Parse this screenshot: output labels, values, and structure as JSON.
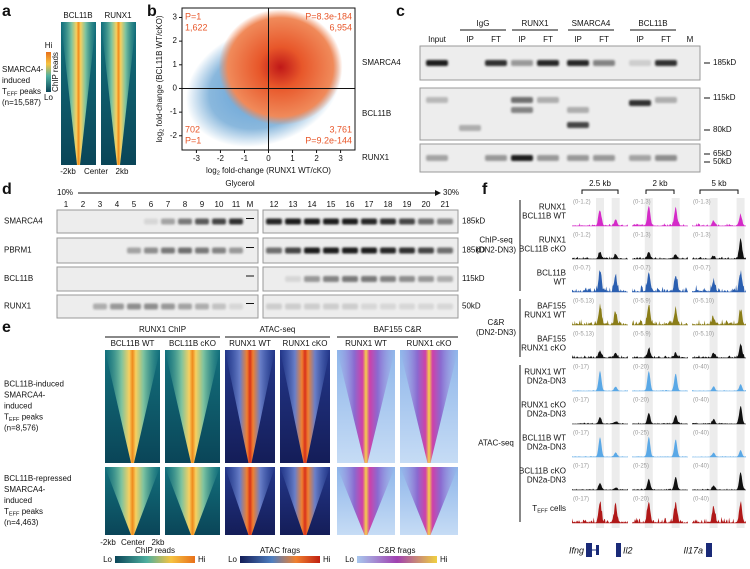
{
  "panel_a": {
    "label": "a",
    "columns": [
      "BCL11B",
      "RUNX1"
    ],
    "row_label": [
      "SMARCA4-",
      "induced",
      {
        "text": "T",
        "sub": "EFF",
        "after": " peaks"
      },
      "(n=15,587)"
    ],
    "colorbar": {
      "hi": "Hi",
      "title": "ChIP reads",
      "lo": "Lo"
    },
    "x_axis": [
      "-2kb",
      "Center",
      "2kb"
    ]
  },
  "panel_b": {
    "label": "b",
    "y_label": {
      "text": "log",
      "sub": "2",
      "after": " fold-change (BCL11B WT/cKO)"
    },
    "x_label": {
      "text": "log",
      "sub": "2",
      "after": " fold-change (RUNX1 WT/cKO)"
    },
    "xlim": [
      -3.6,
      3.6
    ],
    "ylim": [
      -2.6,
      3.4
    ],
    "xticks": [
      -3,
      -2,
      -1,
      0,
      1,
      2,
      3
    ],
    "yticks": [
      -2,
      -1,
      0,
      1,
      2,
      3
    ],
    "quadrants": {
      "top_left": [
        "P=1",
        "1,622"
      ],
      "top_right": [
        "P=8.3e-184",
        "6,954"
      ],
      "bottom_left": [
        "702",
        "P=1"
      ],
      "bottom_right": [
        "3,761",
        "P=9.2e-144"
      ]
    }
  },
  "panel_c": {
    "label": "c",
    "input": "Input",
    "marker": "M",
    "groups": [
      {
        "name": "IgG",
        "lanes": [
          "IP",
          "FT"
        ]
      },
      {
        "name": "RUNX1",
        "lanes": [
          "IP",
          "FT"
        ]
      },
      {
        "name": "SMARCA4",
        "lanes": [
          "IP",
          "FT"
        ]
      },
      {
        "name": "BCL11B",
        "lanes": [
          "IP",
          "FT"
        ]
      }
    ],
    "rows": [
      {
        "name": "SMARCA4",
        "markers": [
          "185kD"
        ]
      },
      {
        "name": "BCL11B",
        "markers": [
          "115kD",
          "80kD"
        ]
      },
      {
        "name": "RUNX1",
        "markers": [
          "65kD",
          "50kD"
        ]
      }
    ]
  },
  "panel_d": {
    "label": "d",
    "gradient": {
      "title": "Glycerol",
      "start": "10%",
      "end": "30%"
    },
    "lanes": [
      1,
      2,
      3,
      4,
      5,
      6,
      7,
      8,
      9,
      10,
      11,
      12,
      13,
      14,
      15,
      16,
      17,
      18,
      19,
      20,
      21
    ],
    "marker": "M",
    "rows": [
      {
        "name": "SMARCA4",
        "marker": "185kD"
      },
      {
        "name": "PBRM1",
        "marker": "185kD"
      },
      {
        "name": "BCL11B",
        "marker": "115kD"
      },
      {
        "name": "RUNX1",
        "marker": "50kD"
      }
    ]
  },
  "panel_e": {
    "label": "e",
    "groups": [
      {
        "name": "RUNX1 ChIP",
        "columns": [
          "BCL11B WT",
          "BCL11B cKO"
        ]
      },
      {
        "name": "ATAC-seq",
        "columns": [
          "RUNX1 WT",
          "RUNX1 cKO"
        ]
      },
      {
        "name": "BAF155 C&R",
        "columns": [
          "RUNX1 WT",
          "RUNX1 cKO"
        ]
      }
    ],
    "rows": [
      [
        "BCL11B-induced",
        "SMARCA4-",
        "induced",
        {
          "text": "T",
          "sub": "EFF",
          "after": " peaks"
        },
        "(n=8,576)"
      ],
      [
        "BCL11B-repressed",
        "SMARCA4-",
        "induced",
        {
          "text": "T",
          "sub": "EFF",
          "after": " peaks"
        },
        "(n=4,463)"
      ]
    ],
    "x_axis": [
      "-2kb",
      "Center",
      "2kb"
    ],
    "colorbars": [
      {
        "lo": "Lo",
        "title": "ChIP reads",
        "hi": "Hi"
      },
      {
        "lo": "Lo",
        "title": "ATAC frags",
        "hi": "Hi"
      },
      {
        "lo": "Lo",
        "title": "C&R frags",
        "hi": "Hi"
      }
    ]
  },
  "panel_f": {
    "label": "f",
    "scales": [
      "2.5 kb",
      "2 kb",
      "5 kb"
    ],
    "groups": [
      {
        "name": [
          "ChIP-seq",
          "(DN2-DN3)"
        ],
        "tracks": [
          {
            "label": [
              "RUNX1",
              "BCL11B WT"
            ],
            "color": "#d42ac8",
            "ranges": [
              "(0-1.2)",
              "(0-1.3)",
              "(0-1.3)"
            ]
          },
          {
            "label": [
              "RUNX1",
              "BCL11B cKO"
            ],
            "color": "#111111",
            "ranges": [
              "(0-1.2)",
              "(0-1.3)",
              "(0-1.3)"
            ]
          },
          {
            "label": [
              "BCL11B",
              "WT"
            ],
            "color": "#2b5fb0",
            "ranges": [
              "(0-0.7)",
              "(0-0.7)",
              "(0-0.7)"
            ]
          }
        ]
      },
      {
        "name": [
          "C&R",
          "(DN2-DN3)"
        ],
        "tracks": [
          {
            "label": [
              "BAF155",
              "RUNX1 WT"
            ],
            "color": "#8a7d18",
            "ranges": [
              "(0-5.13)",
              "(0-5.9)",
              "(0-5.10)"
            ]
          },
          {
            "label": [
              "BAF155",
              "RUNX1 cKO"
            ],
            "color": "#111111",
            "ranges": [
              "(0-5.13)",
              "(0-5.9)",
              "(0-5.10)"
            ]
          }
        ]
      },
      {
        "name": [
          "ATAC-seq"
        ],
        "tracks": [
          {
            "label": [
              "RUNX1 WT",
              "DN2a-DN3"
            ],
            "color": "#5aa8e6",
            "ranges": [
              "(0-17)",
              "(0-20)",
              "(0-40)"
            ]
          },
          {
            "label": [
              "RUNX1 cKO",
              "DN2a-DN3"
            ],
            "color": "#111111",
            "ranges": [
              "(0-17)",
              "(0-20)",
              "(0-40)"
            ]
          },
          {
            "label": [
              "BCL11B WT",
              "DN2a-DN3"
            ],
            "color": "#5aa8e6",
            "ranges": [
              "(0-17)",
              "(0-25)",
              "(0-40)"
            ]
          },
          {
            "label": [
              "BCL11B cKO",
              "DN2a-DN3"
            ],
            "color": "#111111",
            "ranges": [
              "(0-17)",
              "(0-25)",
              "(0-40)"
            ]
          },
          {
            "label": [
              {
                "text": "T",
                "sub": "EFF",
                "after": " cells"
              }
            ],
            "color": "#b01818",
            "ranges": [
              "(0-17)",
              "(0-20)",
              "(0-40)"
            ]
          }
        ]
      }
    ],
    "genes": [
      "Ifng",
      "Il2",
      "Il17a"
    ]
  }
}
